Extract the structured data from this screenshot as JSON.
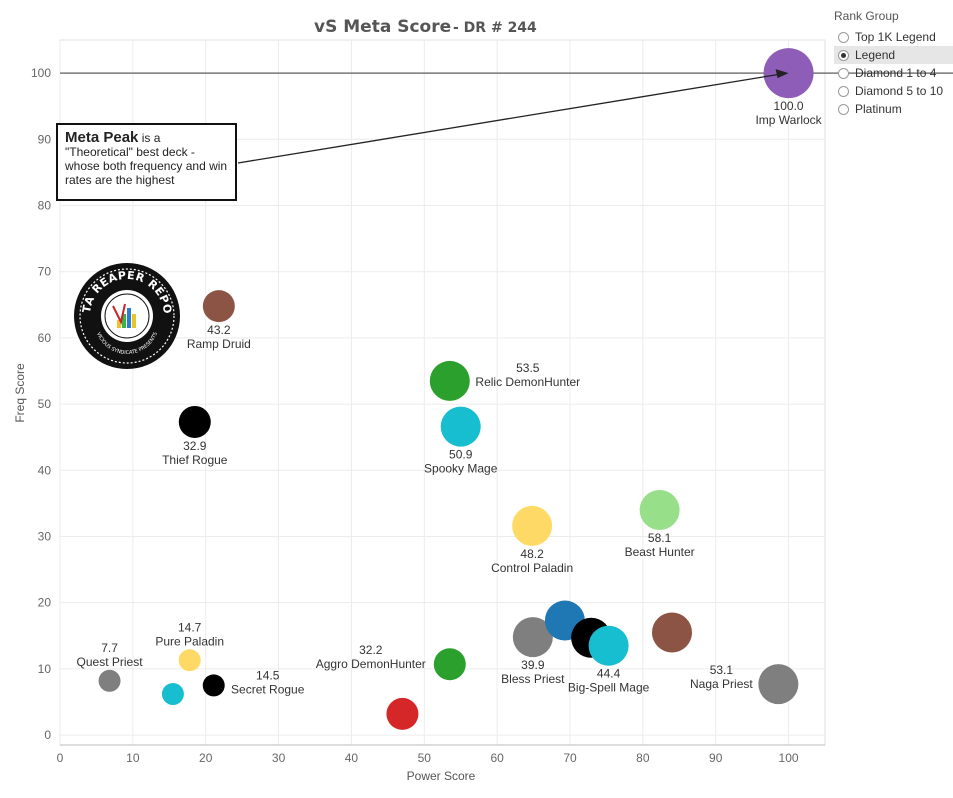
{
  "chart_data": {
    "type": "scatter",
    "title": "vS Meta Score",
    "subtitle": "DR # 244",
    "xlabel": "Power Score",
    "ylabel": "Freq Score",
    "xlim": [
      0,
      105
    ],
    "ylim": [
      -1.5,
      105
    ],
    "xticks": [
      0,
      10,
      20,
      30,
      40,
      50,
      60,
      70,
      80,
      90,
      100
    ],
    "yticks": [
      0,
      10,
      20,
      30,
      40,
      50,
      60,
      70,
      80,
      90,
      100
    ],
    "grid": true,
    "reference_line_y": 100,
    "points": [
      {
        "name": "Imp Warlock",
        "x": 100.0,
        "y": 100.0,
        "score": "100.0",
        "color": "#8e5db8",
        "size": "large",
        "label": "below"
      },
      {
        "name": "Ramp Druid",
        "x": 21.8,
        "y": 64.8,
        "score": "43.2",
        "color": "#8b5444",
        "size": "medium",
        "label": "below"
      },
      {
        "name": "Thief Rogue",
        "x": 18.5,
        "y": 47.3,
        "score": "32.9",
        "color": "#000000",
        "size": "medium",
        "label": "below"
      },
      {
        "name": "Relic DemonHunter",
        "x": 53.5,
        "y": 53.5,
        "score": "53.5",
        "color": "#2ca02c",
        "size": "large",
        "label": "right"
      },
      {
        "name": "Spooky Mage",
        "x": 55.0,
        "y": 46.6,
        "score": "50.9",
        "color": "#17becf",
        "size": "large",
        "label": "below"
      },
      {
        "name": "Control Paladin",
        "x": 64.8,
        "y": 31.6,
        "score": "48.2",
        "color": "#ffd966",
        "size": "large",
        "label": "below"
      },
      {
        "name": "Beast Hunter",
        "x": 82.3,
        "y": 34.0,
        "score": "58.1",
        "color": "#98df8a",
        "size": "large",
        "label": "below"
      },
      {
        "name": "Bless Priest",
        "x": 64.9,
        "y": 14.8,
        "score": "39.9",
        "color": "#7f7f7f",
        "size": "large",
        "label": "below"
      },
      {
        "name": "",
        "x": 69.3,
        "y": 17.3,
        "score": "",
        "color": "#1f77b4",
        "size": "large",
        "label": "none"
      },
      {
        "name": "",
        "x": 72.9,
        "y": 14.7,
        "score": "",
        "color": "#000000",
        "size": "large",
        "label": "none"
      },
      {
        "name": "Big-Spell Mage",
        "x": 75.3,
        "y": 13.5,
        "score": "44.4",
        "color": "#17becf",
        "size": "large",
        "label": "below"
      },
      {
        "name": "",
        "x": 84.0,
        "y": 15.5,
        "score": "",
        "color": "#8b5444",
        "size": "large",
        "label": "none"
      },
      {
        "name": "Naga Priest",
        "x": 98.6,
        "y": 7.7,
        "score": "53.1",
        "color": "#7f7f7f",
        "size": "large",
        "label": "left"
      },
      {
        "name": "Aggro DemonHunter",
        "x": 53.5,
        "y": 10.7,
        "score": "32.2",
        "color": "#2ca02c",
        "size": "medium",
        "label": "left"
      },
      {
        "name": "",
        "x": 47.0,
        "y": 3.2,
        "score": "",
        "color": "#d62728",
        "size": "medium",
        "label": "none"
      },
      {
        "name": "Quest Priest",
        "x": 6.8,
        "y": 8.2,
        "score": "7.7",
        "color": "#7f7f7f",
        "size": "small",
        "label": "above"
      },
      {
        "name": "Pure Paladin",
        "x": 17.8,
        "y": 11.3,
        "score": "14.7",
        "color": "#ffd966",
        "size": "small",
        "label": "above"
      },
      {
        "name": "",
        "x": 15.5,
        "y": 6.2,
        "score": "",
        "color": "#17becf",
        "size": "small",
        "label": "none"
      },
      {
        "name": "Secret Rogue",
        "x": 21.1,
        "y": 7.5,
        "score": "14.5",
        "color": "#000000",
        "size": "small",
        "label": "right"
      }
    ],
    "annotation": {
      "bold": "Meta Peak",
      "text": " is a \"Theoretical\" best deck - whose both frequency and win rates are the highest",
      "arrow_to": [
        100,
        100
      ]
    }
  },
  "legend": {
    "title": "Rank Group",
    "options": [
      "Top 1K Legend",
      "Legend",
      "Diamond 1 to 4",
      "Diamond 5 to 10",
      "Platinum"
    ],
    "selected": "Legend"
  },
  "logo": {
    "text_top": "DATA REAPER REPORT",
    "text_bottom": "VICIOUS SYNDICATE PRESENTS"
  }
}
